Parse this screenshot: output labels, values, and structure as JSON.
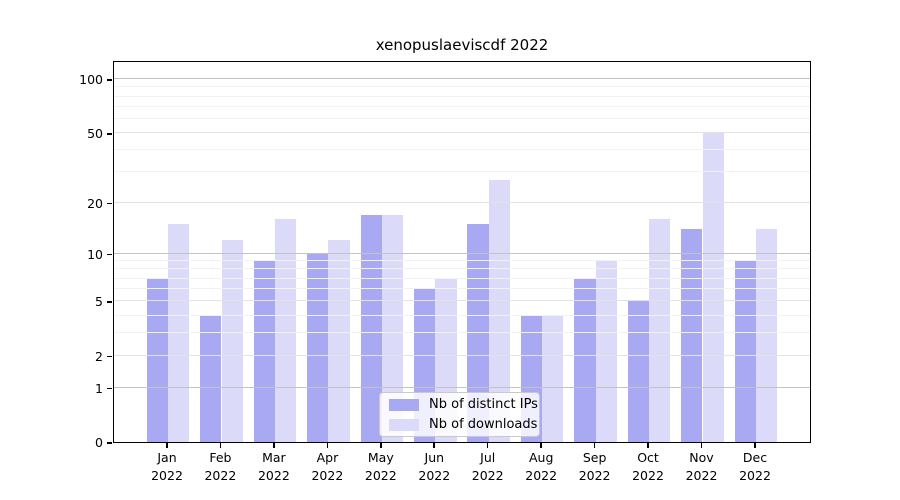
{
  "title": "xenopuslaeviscdf 2022",
  "chart_data": {
    "type": "bar",
    "title": "xenopuslaeviscdf 2022",
    "categories": [
      "Jan",
      "Feb",
      "Mar",
      "Apr",
      "May",
      "Jun",
      "Jul",
      "Aug",
      "Sep",
      "Oct",
      "Nov",
      "Dec"
    ],
    "category_year": "2022",
    "series": [
      {
        "name": "Nb of distinct IPs",
        "color": "#a8a8f3",
        "values": [
          7,
          4,
          9,
          10,
          17,
          6,
          15,
          4,
          7,
          5,
          14,
          9
        ]
      },
      {
        "name": "Nb of downloads",
        "color": "#dbdbf9",
        "values": [
          15,
          12,
          16,
          12,
          17,
          7,
          27,
          4,
          9,
          16,
          50,
          14
        ]
      }
    ],
    "xlabel": "",
    "ylabel": "",
    "scale": "log10(value+1)",
    "ylim": [
      0,
      128
    ],
    "y_tick_labels": [
      0,
      1,
      2,
      5,
      10,
      20,
      50,
      100
    ],
    "gridlines": {
      "strong": [
        1,
        10,
        100
      ],
      "medium": [
        2,
        5,
        20,
        50
      ],
      "minor": [
        3,
        4,
        6,
        7,
        8,
        9,
        30,
        40,
        60,
        70,
        80,
        90
      ]
    },
    "grid": true,
    "legend_position": "inside-bottom-center"
  },
  "legend": {
    "items": [
      {
        "label": "Nb of distinct IPs",
        "color": "#a8a8f3"
      },
      {
        "label": "Nb of downloads",
        "color": "#dbdbf9"
      }
    ]
  }
}
